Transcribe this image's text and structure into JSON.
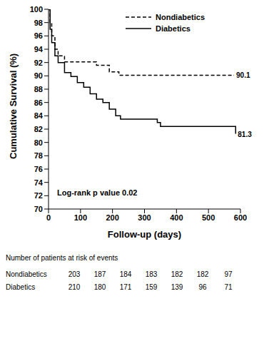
{
  "chart_data": {
    "type": "line",
    "xlabel": "Follow-up (days)",
    "ylabel": "Cumulative Survival (%)",
    "xlim": [
      0,
      600
    ],
    "xticks": [
      0,
      100,
      200,
      300,
      400,
      500,
      600
    ],
    "ylim": [
      70,
      100
    ],
    "yticks": [
      70,
      72,
      74,
      76,
      78,
      80,
      82,
      84,
      86,
      88,
      90,
      92,
      94,
      96,
      98,
      100
    ],
    "legend": "top",
    "annotation": "Log-rank p value 0.02",
    "series": [
      {
        "name": "Nondiabetics",
        "color": "#000000",
        "line_style": "dashed",
        "end_label": 90.1,
        "x": [
          0,
          5,
          10,
          20,
          30,
          50,
          150,
          190,
          220,
          580
        ],
        "values": [
          100,
          98,
          96,
          94,
          93,
          92.1,
          91.6,
          90.6,
          90.1,
          90.1
        ]
      },
      {
        "name": "Diabetics",
        "color": "#000000",
        "line_style": "solid",
        "end_label": 81.3,
        "x": [
          0,
          5,
          10,
          20,
          30,
          50,
          70,
          90,
          110,
          130,
          150,
          170,
          190,
          210,
          225,
          340,
          350,
          580,
          585
        ],
        "values": [
          100,
          97,
          95,
          93,
          92,
          90.5,
          89.9,
          89,
          88.3,
          87.3,
          86.5,
          86,
          85,
          84,
          83.5,
          83,
          82.4,
          82.4,
          81.3
        ]
      }
    ],
    "at_risk": {
      "title": "Number of patients at risk of events",
      "rows": [
        {
          "name": "Nondiabetics",
          "values": [
            203,
            187,
            184,
            183,
            182,
            182,
            97
          ]
        },
        {
          "name": "Diabetics",
          "values": [
            210,
            180,
            171,
            159,
            139,
            96,
            71
          ]
        }
      ]
    }
  }
}
